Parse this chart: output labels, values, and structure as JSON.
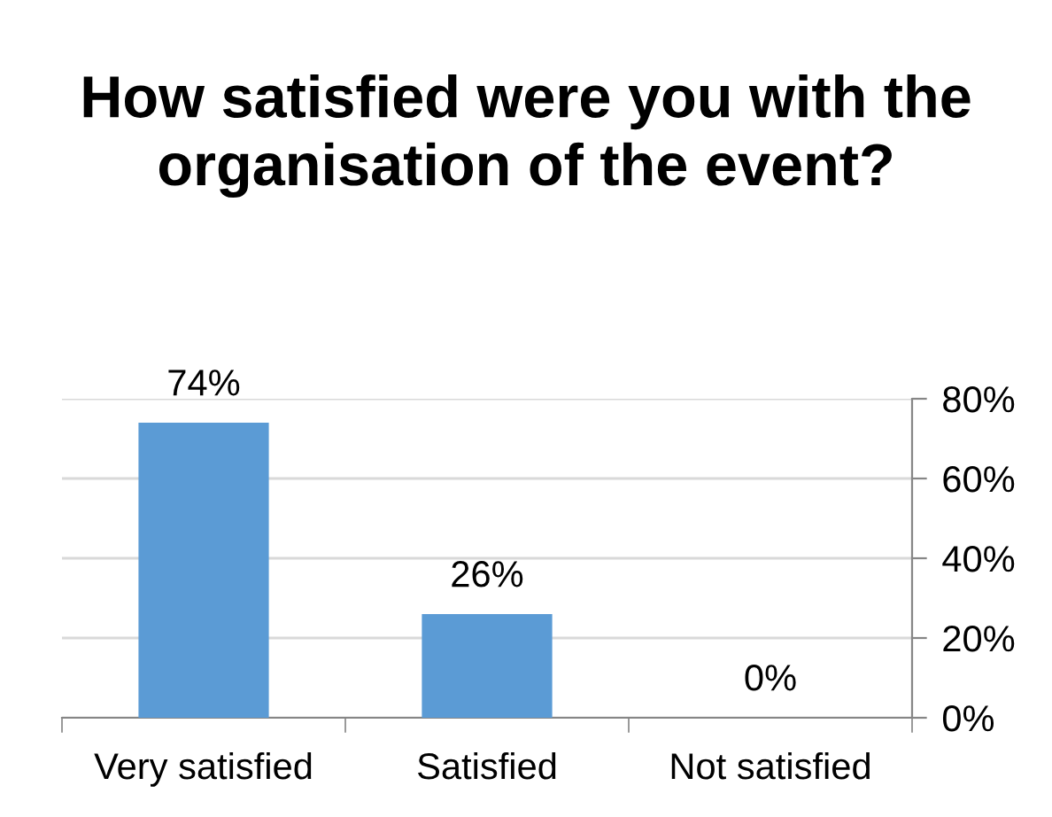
{
  "chart_data": {
    "type": "bar",
    "title": "How satisfied were you with the organisation of the event?",
    "categories": [
      "Very satisfied",
      "Satisfied",
      "Not satisfied"
    ],
    "values": [
      74,
      26,
      0
    ],
    "value_labels": [
      "74%",
      "26%",
      "0%"
    ],
    "color": "#5b9bd5",
    "ylim": [
      0,
      80
    ],
    "yticks": [
      {
        "value": 0,
        "label": "0%"
      },
      {
        "value": 20,
        "label": "20%"
      },
      {
        "value": 40,
        "label": "40%"
      },
      {
        "value": 60,
        "label": "60%"
      },
      {
        "value": 80,
        "label": "80%"
      }
    ],
    "grid": "y",
    "legend": false
  }
}
